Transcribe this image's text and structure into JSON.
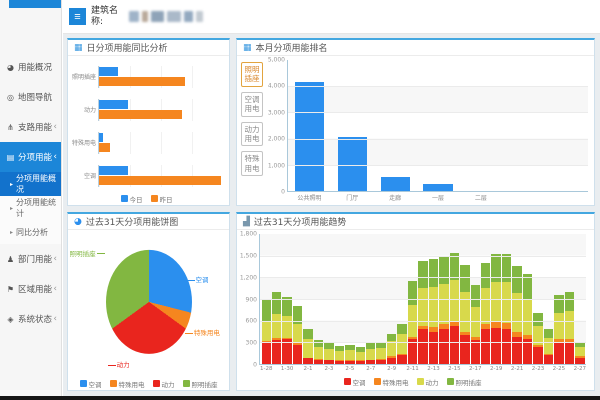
{
  "topbar": {
    "hamburger_icon": "≡",
    "building_label": "建筑名称:"
  },
  "sidebar": {
    "items": [
      {
        "label": "用能概况",
        "icon": "gauge-icon",
        "glyph": "◕"
      },
      {
        "label": "地图导航",
        "icon": "map-pin-icon",
        "glyph": "◎"
      },
      {
        "label": "支路用能",
        "icon": "branch-icon",
        "glyph": "⋔",
        "chevron": "‹"
      },
      {
        "label": "分项用能",
        "icon": "list-icon",
        "glyph": "▤",
        "chevron": "‹",
        "active": true
      },
      {
        "label": "分项用能概况",
        "sub": true,
        "active": true
      },
      {
        "label": "分项用能统计",
        "sub": true
      },
      {
        "label": "同比分析",
        "sub": true
      },
      {
        "label": "部门用能",
        "icon": "people-icon",
        "glyph": "♟",
        "chevron": "‹"
      },
      {
        "label": "区域用能",
        "icon": "flag-icon",
        "glyph": "⚑",
        "chevron": "‹"
      },
      {
        "label": "系统状态",
        "icon": "status-icon",
        "glyph": "◈",
        "chevron": "‹"
      }
    ],
    "sub_arrow": "▸"
  },
  "panels": [
    {
      "icon_name": "calendar-icon",
      "glyph": "▦",
      "glyph_color": "#3a99e0"
    },
    {
      "icon_name": "calendar-icon",
      "glyph": "▦",
      "glyph_color": "#3a99e0"
    },
    {
      "icon_name": "pie-icon",
      "glyph": "◕",
      "glyph_color": "#2b8fee"
    },
    {
      "icon_name": "bar-chart-icon",
      "glyph": "▟",
      "glyph_color": "#7a98ad"
    }
  ],
  "chart_data": [
    {
      "type": "bar",
      "orientation": "horizontal",
      "title": "日分项用能同比分析",
      "categories": [
        "照明插座",
        "动力",
        "特殊用电",
        "空调"
      ],
      "series": [
        {
          "name": "今日",
          "color": "#2b8fee",
          "values": [
            150,
            230,
            30,
            235
          ]
        },
        {
          "name": "昨日",
          "color": "#f5861f",
          "values": [
            690,
            670,
            90,
            980
          ]
        }
      ],
      "xlim": [
        0,
        1000
      ],
      "grid": true,
      "legend_position": "bottom"
    },
    {
      "type": "bar",
      "title": "本月分项用能排名",
      "filter_buttons": [
        {
          "label": "照明插座",
          "active": true
        },
        {
          "label": "空调用电",
          "active": false
        },
        {
          "label": "动力用电",
          "active": false
        },
        {
          "label": "特殊用电",
          "active": false
        }
      ],
      "categories": [
        "公共照明",
        "门厅",
        "走廊",
        "一层",
        "二层"
      ],
      "values": [
        4150,
        2050,
        550,
        250,
        0
      ],
      "bar_color": "#2b8fee",
      "ylim": [
        0,
        5000
      ],
      "yticks": [
        "5,000",
        "4,000",
        "3,000",
        "2,000",
        "1,000",
        "0"
      ],
      "grid": true
    },
    {
      "type": "pie",
      "title": "过去31天分项用能饼图",
      "slices": [
        {
          "label": "空调",
          "color": "#2b8fee",
          "percent": 29
        },
        {
          "label": "特殊用电",
          "color": "#f5861f",
          "percent": 6
        },
        {
          "label": "动力",
          "color": "#e9251e",
          "percent": 30
        },
        {
          "label": "照明插座",
          "color": "#82b741",
          "percent": 35
        }
      ],
      "legend_position": "bottom"
    },
    {
      "type": "bar",
      "stacked": true,
      "title": "过去31天分项用能趋势",
      "categories": [
        "1-28",
        "1-29",
        "1-30",
        "1-31",
        "2-1",
        "2-2",
        "2-3",
        "2-4",
        "2-5",
        "2-6",
        "2-7",
        "2-8",
        "2-9",
        "2-10",
        "2-11",
        "2-12",
        "2-13",
        "2-14",
        "2-15",
        "2-16",
        "2-17",
        "2-18",
        "2-19",
        "2-20",
        "2-21",
        "2-22",
        "2-23",
        "2-24",
        "2-25",
        "2-26",
        "2-27"
      ],
      "label_every": 2,
      "series": [
        {
          "name": "空调",
          "color": "#e9251e",
          "values": [
            300,
            330,
            340,
            270,
            80,
            60,
            50,
            40,
            45,
            40,
            50,
            55,
            90,
            120,
            340,
            480,
            450,
            490,
            530,
            400,
            330,
            480,
            500,
            490,
            380,
            350,
            230,
            120,
            300,
            310,
            90
          ]
        },
        {
          "name": "特殊用电",
          "color": "#f5861f",
          "values": [
            20,
            30,
            20,
            20,
            10,
            10,
            10,
            10,
            10,
            10,
            10,
            10,
            15,
            20,
            40,
            50,
            60,
            60,
            60,
            50,
            40,
            70,
            80,
            80,
            60,
            50,
            30,
            20,
            40,
            40,
            15
          ]
        },
        {
          "name": "动力",
          "color": "#d8d94b",
          "values": [
            280,
            330,
            300,
            260,
            250,
            170,
            150,
            130,
            140,
            120,
            150,
            155,
            210,
            280,
            440,
            520,
            560,
            560,
            570,
            550,
            420,
            500,
            560,
            570,
            550,
            500,
            270,
            220,
            360,
            390,
            130
          ]
        },
        {
          "name": "照明插座",
          "color": "#82b741",
          "values": [
            300,
            310,
            270,
            250,
            140,
            90,
            80,
            70,
            75,
            70,
            80,
            80,
            105,
            140,
            330,
            370,
            390,
            380,
            380,
            370,
            310,
            350,
            380,
            380,
            370,
            350,
            170,
            120,
            250,
            260,
            65
          ]
        }
      ],
      "ylim": [
        0,
        1800
      ],
      "yticks": [
        "1,800",
        "1,500",
        "1,200",
        "900",
        "600",
        "300",
        "0"
      ],
      "grid": true,
      "legend_position": "bottom"
    }
  ],
  "colors": {
    "primary_blue": "#1c86d8",
    "accent_orange": "#f5861f",
    "panel_border_top": "#43a7e0",
    "sidebar_active": "#1c86d8",
    "sidebar_sub_active": "#1272cc"
  }
}
